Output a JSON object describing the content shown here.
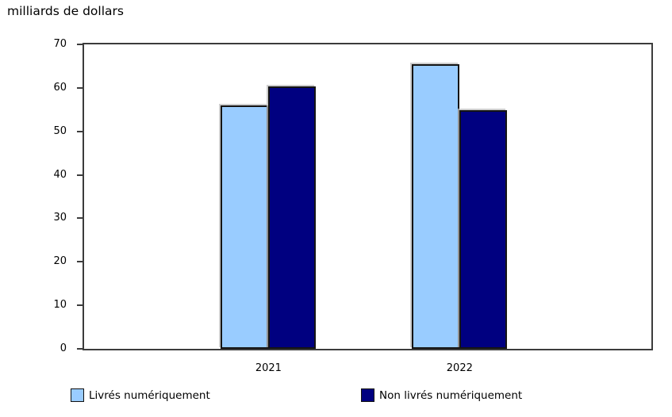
{
  "unit_label": "milliards de dollars",
  "chart_data": {
    "type": "bar",
    "title": "milliards de dollars",
    "categories": [
      "2021",
      "2022"
    ],
    "series": [
      {
        "name": "Livrés numériquement",
        "color": "#99CCFF",
        "values": [
          56.0,
          65.5
        ]
      },
      {
        "name": "Non livrés numériquement",
        "color": "#000080",
        "values": [
          60.4,
          54.9
        ]
      }
    ],
    "xlabel": "",
    "ylabel": "milliards de dollars",
    "ylim": [
      0,
      70
    ],
    "yticks": [
      0,
      10,
      20,
      30,
      40,
      50,
      60,
      70
    ],
    "grid": false,
    "legend_position": "bottom"
  }
}
